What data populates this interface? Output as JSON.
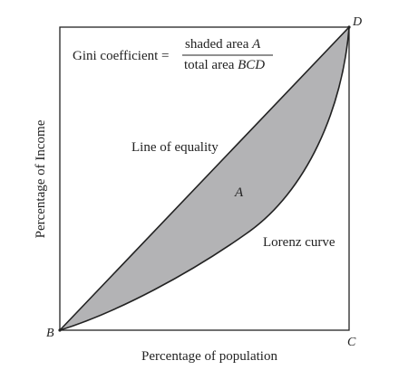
{
  "diagram": {
    "formula": {
      "lhs": "Gini coefficient =",
      "numerator_text": "shaded area ",
      "numerator_var": "A",
      "denominator_text": "total area ",
      "denominator_var": "BCD"
    },
    "labels": {
      "equality_line": "Line of equality",
      "area": "A",
      "lorenz_curve": "Lorenz curve",
      "x_axis": "Percentage of population",
      "y_axis": "Percentage of Income",
      "corner_b": "B",
      "corner_c": "C",
      "corner_d": "D"
    },
    "colors": {
      "frame": "#222222",
      "shading": "#b3b3b5",
      "text": "#222222"
    }
  }
}
